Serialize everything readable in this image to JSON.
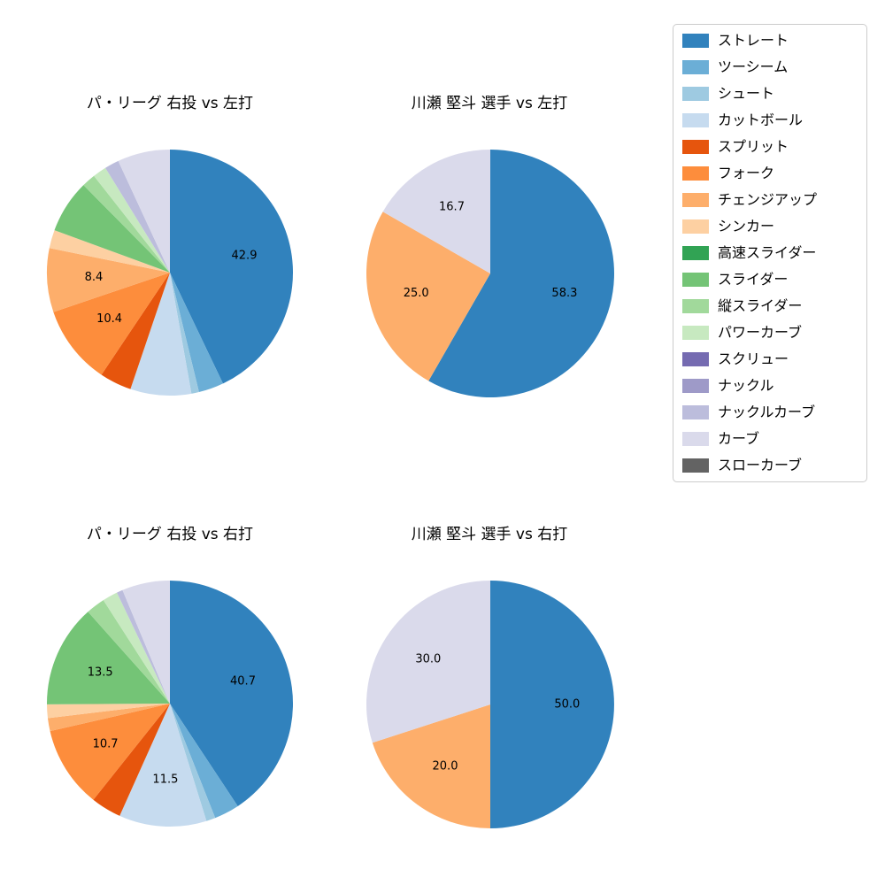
{
  "page": {
    "background": "#ffffff"
  },
  "legend": {
    "items": [
      {
        "name": "ストレート",
        "color": "#3182bd"
      },
      {
        "name": "ツーシーム",
        "color": "#6baed6"
      },
      {
        "name": "シュート",
        "color": "#9ecae1"
      },
      {
        "name": "カットボール",
        "color": "#c6dbef"
      },
      {
        "name": "スプリット",
        "color": "#e6550d"
      },
      {
        "name": "フォーク",
        "color": "#fd8d3c"
      },
      {
        "name": "チェンジアップ",
        "color": "#fdae6b"
      },
      {
        "name": "シンカー",
        "color": "#fdd0a2"
      },
      {
        "name": "高速スライダー",
        "color": "#31a354"
      },
      {
        "name": "スライダー",
        "color": "#74c476"
      },
      {
        "name": "縦スライダー",
        "color": "#a1d99b"
      },
      {
        "name": "パワーカーブ",
        "color": "#c7e9c0"
      },
      {
        "name": "スクリュー",
        "color": "#756bb1"
      },
      {
        "name": "ナックル",
        "color": "#9e9ac8"
      },
      {
        "name": "ナックルカーブ",
        "color": "#bcbddc"
      },
      {
        "name": "カーブ",
        "color": "#dadaeb"
      },
      {
        "name": "スローカーブ",
        "color": "#636363"
      }
    ]
  },
  "chart_data": [
    {
      "type": "pie",
      "title": "パ・リーグ 右投 vs 左打",
      "start_angle": "top",
      "direction": "clockwise",
      "unit": "percent",
      "slices": [
        {
          "category": "ストレート",
          "value": 42.9,
          "label": "42.9"
        },
        {
          "category": "ツーシーム",
          "value": 3.3,
          "label": null
        },
        {
          "category": "シュート",
          "value": 1.0,
          "label": null
        },
        {
          "category": "カットボール",
          "value": 8.0,
          "label": null
        },
        {
          "category": "スプリット",
          "value": 4.2,
          "label": null
        },
        {
          "category": "フォーク",
          "value": 10.4,
          "label": "10.4"
        },
        {
          "category": "チェンジアップ",
          "value": 8.4,
          "label": "8.4"
        },
        {
          "category": "シンカー",
          "value": 2.4,
          "label": null
        },
        {
          "category": "スライダー",
          "value": 7.0,
          "label": null
        },
        {
          "category": "縦スライダー",
          "value": 1.8,
          "label": null
        },
        {
          "category": "パワーカーブ",
          "value": 1.8,
          "label": null
        },
        {
          "category": "ナックルカーブ",
          "value": 1.9,
          "label": null
        },
        {
          "category": "カーブ",
          "value": 6.9,
          "label": null
        }
      ]
    },
    {
      "type": "pie",
      "title": "川瀬 堅斗 選手 vs 左打",
      "start_angle": "top",
      "direction": "clockwise",
      "unit": "percent",
      "slices": [
        {
          "category": "ストレート",
          "value": 58.3,
          "label": "58.3"
        },
        {
          "category": "チェンジアップ",
          "value": 25.0,
          "label": "25.0"
        },
        {
          "category": "カーブ",
          "value": 16.7,
          "label": "16.7"
        }
      ]
    },
    {
      "type": "pie",
      "title": "パ・リーグ 右投 vs 右打",
      "start_angle": "top",
      "direction": "clockwise",
      "unit": "percent",
      "slices": [
        {
          "category": "ストレート",
          "value": 40.7,
          "label": "40.7"
        },
        {
          "category": "ツーシーム",
          "value": 3.3,
          "label": null
        },
        {
          "category": "シュート",
          "value": 1.2,
          "label": null
        },
        {
          "category": "カットボール",
          "value": 11.5,
          "label": "11.5"
        },
        {
          "category": "スプリット",
          "value": 4.0,
          "label": null
        },
        {
          "category": "フォーク",
          "value": 10.7,
          "label": "10.7"
        },
        {
          "category": "チェンジアップ",
          "value": 1.7,
          "label": null
        },
        {
          "category": "シンカー",
          "value": 1.8,
          "label": null
        },
        {
          "category": "スライダー",
          "value": 13.5,
          "label": "13.5"
        },
        {
          "category": "縦スライダー",
          "value": 2.5,
          "label": null
        },
        {
          "category": "パワーカーブ",
          "value": 2.0,
          "label": null
        },
        {
          "category": "ナックルカーブ",
          "value": 0.8,
          "label": null
        },
        {
          "category": "カーブ",
          "value": 6.3,
          "label": null
        }
      ]
    },
    {
      "type": "pie",
      "title": "川瀬 堅斗 選手 vs 右打",
      "start_angle": "top",
      "direction": "clockwise",
      "unit": "percent",
      "slices": [
        {
          "category": "ストレート",
          "value": 50.0,
          "label": "50.0"
        },
        {
          "category": "チェンジアップ",
          "value": 20.0,
          "label": "20.0"
        },
        {
          "category": "カーブ",
          "value": 30.0,
          "label": "30.0"
        }
      ]
    }
  ]
}
